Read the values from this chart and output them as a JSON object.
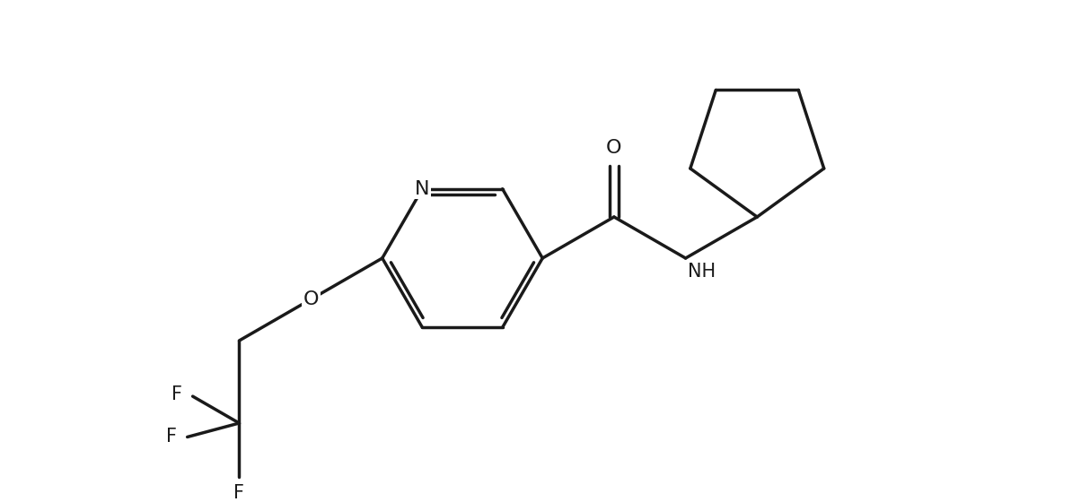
{
  "background_color": "#ffffff",
  "line_color": "#1a1a1a",
  "line_width": 2.5,
  "font_size_atoms": 16,
  "figsize": [
    12.04,
    5.6
  ],
  "dpi": 100,
  "xlim": [
    0,
    12.04
  ],
  "ylim": [
    0,
    5.6
  ]
}
